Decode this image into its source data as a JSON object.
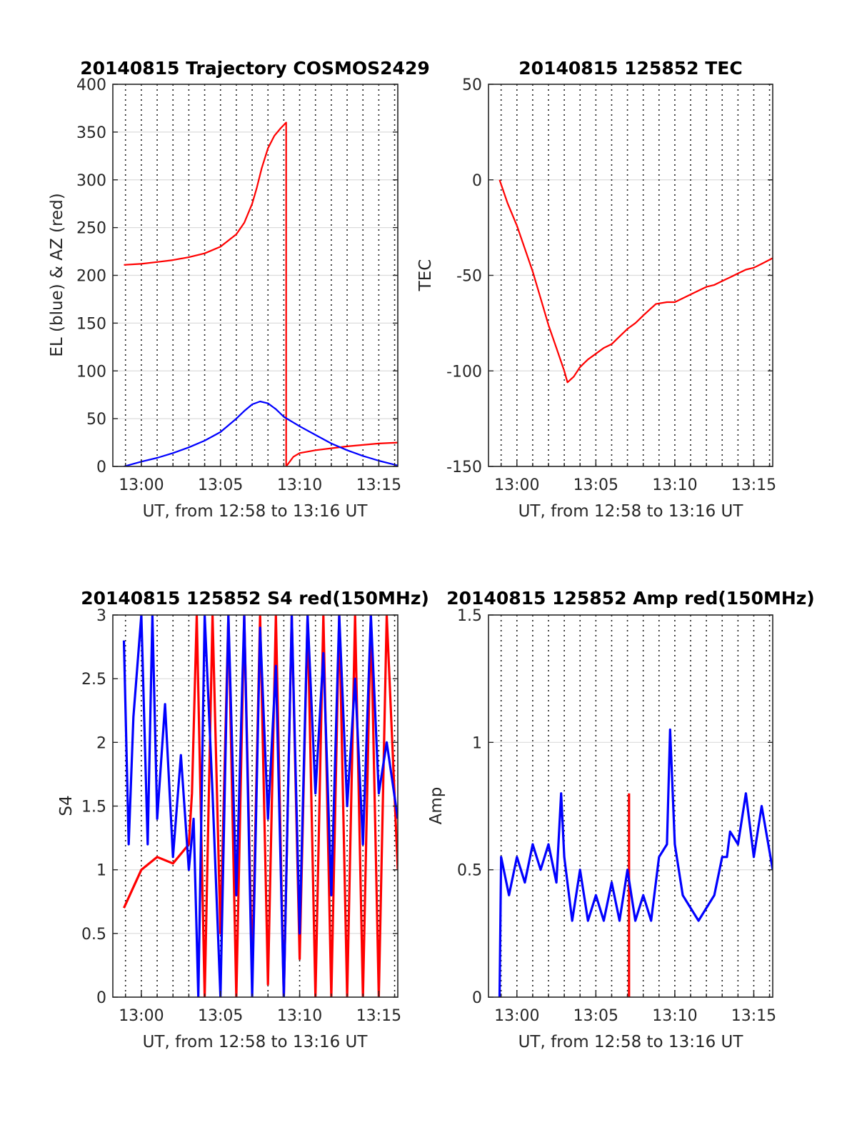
{
  "chart_data": [
    {
      "type": "line",
      "title": "20140815 Trajectory COSMOS2429",
      "xlabel": "UT, from 12:58 to 13:16 UT",
      "ylabel": "EL (blue) & AZ (red)",
      "xlim": [
        -1.8,
        16.2
      ],
      "ylim": [
        0,
        400
      ],
      "xticks": [
        0,
        5,
        10,
        15
      ],
      "xtick_labels": [
        "13:00",
        "13:05",
        "13:10",
        "13:15"
      ],
      "yticks": [
        0,
        50,
        100,
        150,
        200,
        250,
        300,
        350,
        400
      ],
      "ytick_labels": [
        "0",
        "50",
        "100",
        "150",
        "200",
        "250",
        "300",
        "350",
        "400"
      ],
      "x_unit": "minutes after 13:00 UT",
      "grid": {
        "x": "dotted",
        "y": "solid-light"
      },
      "series": [
        {
          "color": "#ff0000",
          "x": [
            -1.1,
            0.0,
            1.0,
            2.0,
            3.0,
            4.0,
            5.0,
            6.0,
            6.5,
            7.0,
            7.3,
            7.6,
            8.0,
            8.4,
            8.8,
            9.15,
            9.15,
            9.6,
            10.0,
            11.0,
            12.0,
            13.0,
            14.0,
            15.0,
            16.2
          ],
          "y": [
            211,
            212,
            214,
            216,
            219,
            223,
            230,
            243,
            255,
            275,
            292,
            312,
            333,
            346,
            354,
            360,
            0,
            10,
            14,
            17,
            19,
            21,
            22.5,
            24,
            25
          ]
        },
        {
          "color": "#0000ff",
          "x": [
            -1.1,
            0.0,
            1.0,
            2.0,
            3.0,
            4.0,
            5.0,
            6.0,
            6.5,
            7.0,
            7.5,
            8.0,
            8.5,
            9.0,
            10.0,
            11.0,
            12.0,
            13.0,
            14.0,
            15.0,
            16.2
          ],
          "y": [
            0,
            5,
            9,
            14,
            20,
            27,
            36,
            50,
            58,
            65,
            68,
            66,
            60,
            52,
            42,
            33,
            24,
            17,
            11,
            6,
            1
          ]
        }
      ]
    },
    {
      "type": "line",
      "title": "20140815 125852 TEC",
      "xlabel": "UT, from 12:58 to 13:16 UT",
      "ylabel": "TEC",
      "xlim": [
        -1.8,
        16.2
      ],
      "ylim": [
        -150,
        50
      ],
      "xticks": [
        0,
        5,
        10,
        15
      ],
      "xtick_labels": [
        "13:00",
        "13:05",
        "13:10",
        "13:15"
      ],
      "yticks": [
        -150,
        -100,
        -50,
        0,
        50
      ],
      "ytick_labels": [
        "-150",
        "-100",
        "-50",
        "0",
        "50"
      ],
      "x_unit": "minutes after 13:00 UT",
      "grid": {
        "x": "dotted",
        "y": "solid-light"
      },
      "series": [
        {
          "color": "#ff0000",
          "x": [
            -1.1,
            -0.6,
            0.0,
            0.5,
            1.0,
            1.5,
            2.0,
            2.5,
            3.0,
            3.2,
            3.6,
            4.0,
            4.5,
            5.0,
            5.5,
            6.0,
            6.5,
            7.0,
            7.5,
            8.0,
            8.4,
            8.8,
            9.5,
            10.0,
            10.5,
            11.0,
            11.5,
            12.0,
            12.5,
            13.0,
            13.5,
            14.0,
            14.5,
            15.0,
            15.5,
            16.2
          ],
          "y": [
            0,
            -12,
            -24,
            -36,
            -48,
            -62,
            -76,
            -88,
            -100,
            -106,
            -103,
            -98,
            -94,
            -91,
            -88,
            -86,
            -82,
            -78,
            -75,
            -71,
            -68,
            -65,
            -64,
            -64,
            -62,
            -60,
            -58,
            -56,
            -55,
            -53,
            -51,
            -49,
            -47,
            -46,
            -44,
            -41
          ]
        }
      ]
    },
    {
      "type": "line",
      "title": "20140815 125852 S4 red(150MHz)",
      "xlabel": "UT, from 12:58 to 13:16 UT",
      "ylabel": "S4",
      "xlim": [
        -1.8,
        16.2
      ],
      "ylim": [
        0,
        3
      ],
      "xticks": [
        0,
        5,
        10,
        15
      ],
      "xtick_labels": [
        "13:00",
        "13:05",
        "13:10",
        "13:15"
      ],
      "yticks": [
        0,
        0.5,
        1,
        1.5,
        2,
        2.5,
        3
      ],
      "ytick_labels": [
        "0",
        "0.5",
        "1",
        "1.5",
        "2",
        "2.5",
        "3"
      ],
      "x_unit": "minutes after 13:00 UT",
      "grid": {
        "x": "dotted",
        "y": "solid-light"
      },
      "series": [
        {
          "color": "#ff0000",
          "x": [
            -1.1,
            0.0,
            1.0,
            2.0,
            3.0,
            3.2,
            3.5,
            4.0,
            4.5,
            5.0,
            5.5,
            6.0,
            6.5,
            7.0,
            7.5,
            8.0,
            8.5,
            9.0,
            9.5,
            10.0,
            10.5,
            11.0,
            11.5,
            12.0,
            12.5,
            13.0,
            13.5,
            14.0,
            14.5,
            15.0,
            15.5,
            16.2
          ],
          "y": [
            0.7,
            1.0,
            1.1,
            1.05,
            1.2,
            1.6,
            3.0,
            0.0,
            3.0,
            0.5,
            3.0,
            0.0,
            3.0,
            0.2,
            3.0,
            0.1,
            3.0,
            0.0,
            3.0,
            0.3,
            3.0,
            0.0,
            3.0,
            0.0,
            3.0,
            0.0,
            3.0,
            0.0,
            3.0,
            0.0,
            3.0,
            1.0
          ]
        },
        {
          "color": "#0000ff",
          "x": [
            -1.1,
            -0.8,
            -0.5,
            0.0,
            0.4,
            0.7,
            1.0,
            1.5,
            2.0,
            2.5,
            3.0,
            3.3,
            3.6,
            4.0,
            4.5,
            5.0,
            5.5,
            6.0,
            6.5,
            7.0,
            7.5,
            8.0,
            8.5,
            9.0,
            9.5,
            10.0,
            10.5,
            11.0,
            11.5,
            12.0,
            12.5,
            13.0,
            13.5,
            14.0,
            14.5,
            15.0,
            15.5,
            16.2
          ],
          "y": [
            2.8,
            1.2,
            2.2,
            3.0,
            1.2,
            3.0,
            1.4,
            2.3,
            1.1,
            1.9,
            1.0,
            1.4,
            0.0,
            3.0,
            1.6,
            0.0,
            3.0,
            0.8,
            3.0,
            0.0,
            2.9,
            1.4,
            2.6,
            0.0,
            3.0,
            0.5,
            3.0,
            1.6,
            2.7,
            0.8,
            3.0,
            1.5,
            2.5,
            1.2,
            3.0,
            1.6,
            2.0,
            1.4
          ]
        }
      ]
    },
    {
      "type": "line",
      "title": "20140815 125852 Amp red(150MHz)",
      "xlabel": "UT, from 12:58 to 13:16 UT",
      "ylabel": "Amp",
      "xlim": [
        -1.8,
        16.2
      ],
      "ylim": [
        0,
        1.5
      ],
      "xticks": [
        0,
        5,
        10,
        15
      ],
      "xtick_labels": [
        "13:00",
        "13:05",
        "13:10",
        "13:15"
      ],
      "yticks": [
        0,
        0.5,
        1,
        1.5
      ],
      "ytick_labels": [
        "0",
        "0.5",
        "1",
        "1.5"
      ],
      "x_unit": "minutes after 13:00 UT",
      "grid": {
        "x": "dotted",
        "y": "solid-light"
      },
      "series": [
        {
          "color": "#ff0000",
          "x": [
            7.1,
            7.1
          ],
          "y": [
            0.0,
            0.8
          ]
        },
        {
          "color": "#0000ff",
          "x": [
            -1.1,
            -1.0,
            -0.5,
            0.0,
            0.5,
            1.0,
            1.5,
            2.0,
            2.5,
            2.8,
            3.0,
            3.5,
            4.0,
            4.5,
            5.0,
            5.5,
            6.0,
            6.5,
            7.0,
            7.5,
            8.0,
            8.5,
            9.0,
            9.5,
            9.7,
            10.0,
            10.5,
            11.0,
            11.5,
            12.0,
            12.5,
            13.0,
            13.3,
            13.5,
            14.0,
            14.5,
            15.0,
            15.5,
            16.2
          ],
          "y": [
            0.0,
            0.55,
            0.4,
            0.55,
            0.45,
            0.6,
            0.5,
            0.6,
            0.45,
            0.8,
            0.55,
            0.3,
            0.5,
            0.3,
            0.4,
            0.3,
            0.45,
            0.3,
            0.5,
            0.3,
            0.4,
            0.3,
            0.55,
            0.6,
            1.05,
            0.6,
            0.4,
            0.35,
            0.3,
            0.35,
            0.4,
            0.55,
            0.55,
            0.65,
            0.6,
            0.8,
            0.55,
            0.75,
            0.5
          ]
        }
      ]
    }
  ]
}
